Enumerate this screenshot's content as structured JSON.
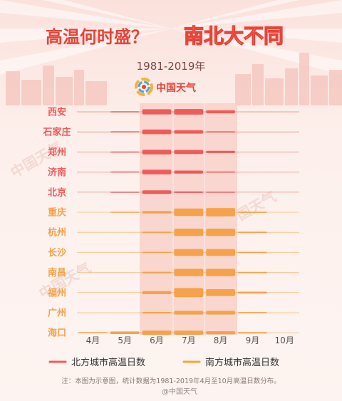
{
  "header": {
    "title_part1": "高温何时盛？",
    "title_part2": "南北大不同",
    "subtitle": "1981-2019年",
    "brand": "中国天气"
  },
  "colors": {
    "north": "#ef5b5b",
    "south": "#f6a24a",
    "title_dark": "#e8443a",
    "title_light": "#ffffff",
    "highlight_band": "#f7cfc7"
  },
  "legend": {
    "north_label": "北方城市高温日数",
    "south_label": "南方城市高温日数"
  },
  "footer": {
    "note": "注：本图为示意图，统计数据为1981-2019年4月至10月高温日数分布。",
    "watermark": "@中国天气"
  },
  "chart_data": {
    "type": "bar",
    "layout": "horizontal-lanes",
    "categories": [
      "4月",
      "5月",
      "6月",
      "7月",
      "8月",
      "9月",
      "10月"
    ],
    "highlight_months": [
      "6月",
      "7月",
      "8月"
    ],
    "unit": "relative high-temperature days (0-10 scale, schematic)",
    "cities": [
      {
        "name": "西安",
        "group": "north",
        "values": [
          0,
          0.4,
          5.5,
          6.0,
          3.2,
          0,
          0
        ]
      },
      {
        "name": "石家庄",
        "group": "north",
        "values": [
          0,
          0.4,
          5.0,
          3.6,
          1.2,
          0,
          0
        ]
      },
      {
        "name": "郑州",
        "group": "north",
        "values": [
          0,
          0.4,
          5.0,
          4.4,
          2.4,
          0,
          0
        ]
      },
      {
        "name": "济南",
        "group": "north",
        "values": [
          0,
          0.4,
          5.0,
          3.2,
          1.2,
          0,
          0
        ]
      },
      {
        "name": "北京",
        "group": "north",
        "values": [
          0,
          0.4,
          3.8,
          1.6,
          0.4,
          0,
          0
        ]
      },
      {
        "name": "重庆",
        "group": "south",
        "values": [
          0,
          0.4,
          2.8,
          8.0,
          9.0,
          1.4,
          0
        ]
      },
      {
        "name": "杭州",
        "group": "south",
        "values": [
          0,
          0,
          1.6,
          8.0,
          8.0,
          1.4,
          0
        ]
      },
      {
        "name": "长沙",
        "group": "south",
        "values": [
          0,
          0,
          1.2,
          7.4,
          7.4,
          1.2,
          0
        ]
      },
      {
        "name": "南昌",
        "group": "south",
        "values": [
          0,
          0,
          1.6,
          8.0,
          8.0,
          1.4,
          0
        ]
      },
      {
        "name": "福州",
        "group": "south",
        "values": [
          0,
          0,
          3.4,
          9.8,
          7.4,
          2.0,
          0
        ]
      },
      {
        "name": "广州",
        "group": "south",
        "values": [
          0,
          0,
          1.6,
          4.0,
          4.0,
          1.4,
          0
        ]
      },
      {
        "name": "海口",
        "group": "south",
        "values": [
          0.4,
          2.8,
          4.8,
          4.4,
          3.4,
          1.6,
          0
        ]
      }
    ]
  }
}
